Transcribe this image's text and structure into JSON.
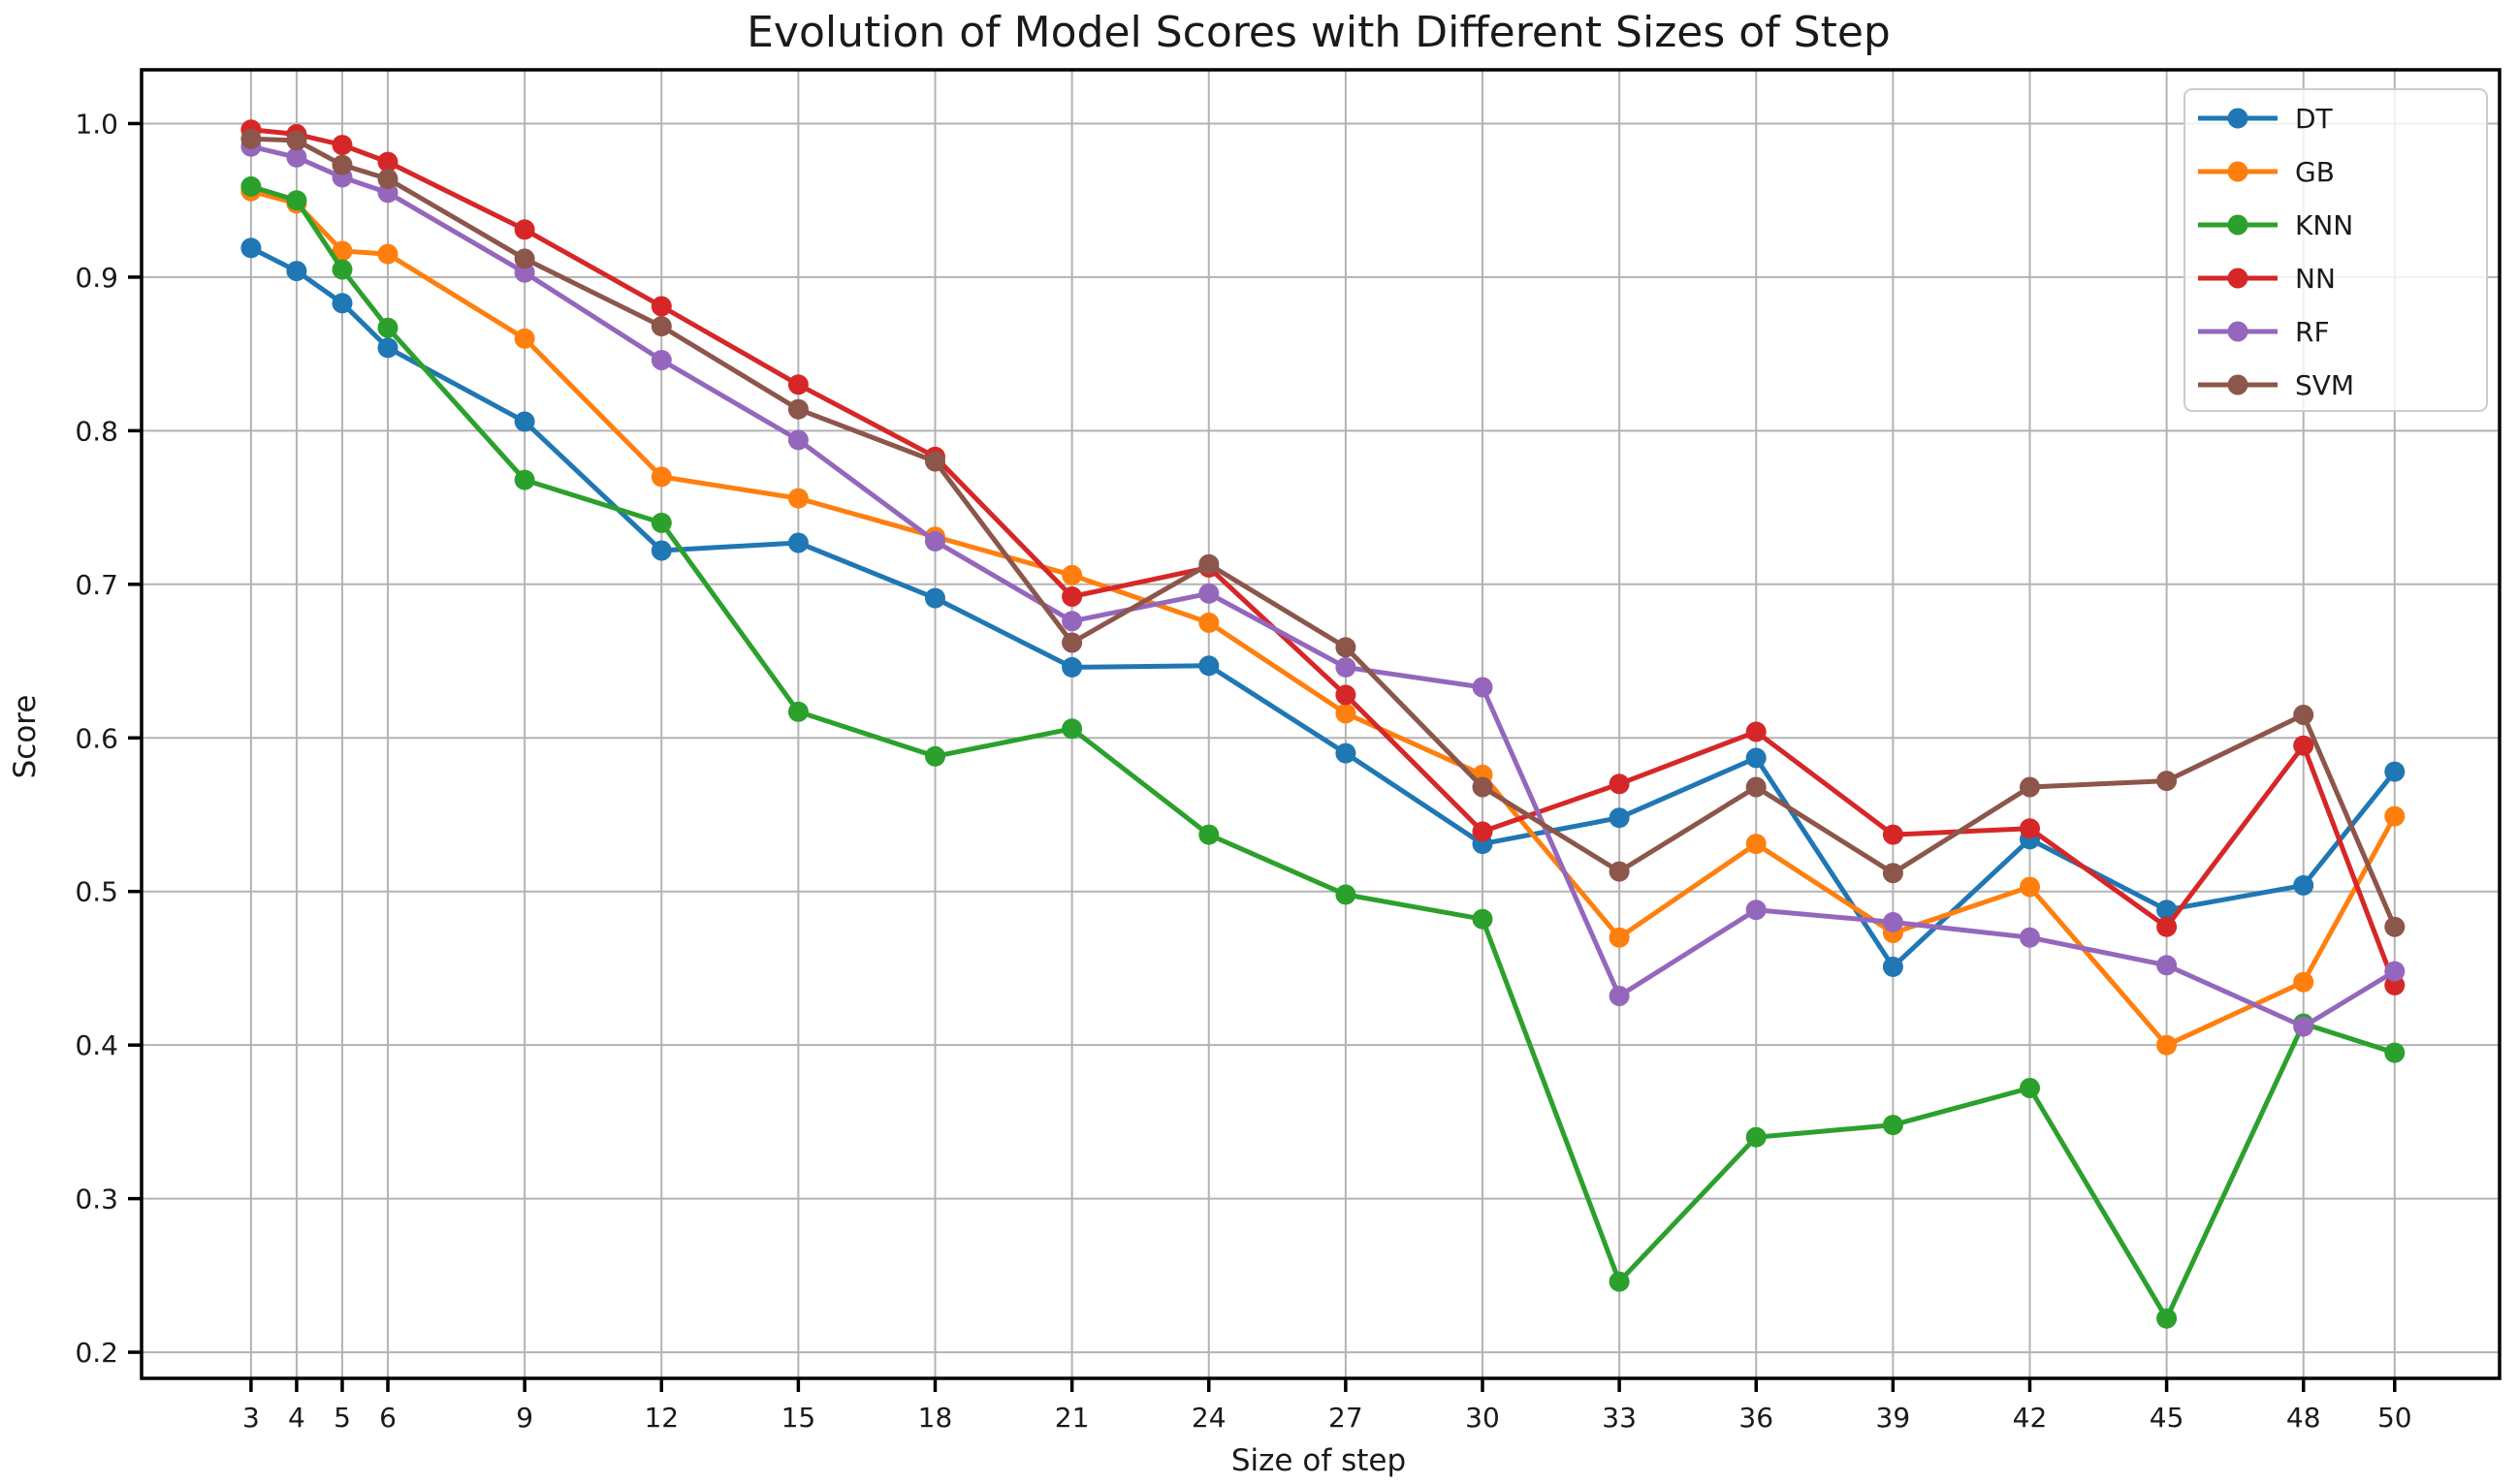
{
  "figure": {
    "title": "Evolution of Model Scores with Different Sizes of Step",
    "background_color": "#ffffff",
    "grid_color": "#b3b3b3",
    "spine_color": "#000000",
    "text_color": "#1a1a1a"
  },
  "chart_data": {
    "type": "line",
    "title": "Evolution of Model Scores with Different Sizes of Step",
    "xlabel": "Size of step",
    "ylabel": "Score",
    "grid": true,
    "legend_position": "upper right",
    "x": [
      3,
      4,
      5,
      6,
      9,
      12,
      15,
      18,
      21,
      24,
      27,
      30,
      33,
      36,
      39,
      42,
      45,
      48,
      50
    ],
    "x_tick_labels": [
      "3",
      "4",
      "5",
      "6",
      "9",
      "12",
      "15",
      "18",
      "21",
      "24",
      "27",
      "30",
      "33",
      "36",
      "39",
      "42",
      "45",
      "48",
      "50"
    ],
    "y_ticks": [
      0.2,
      0.3,
      0.4,
      0.5,
      0.6,
      0.7,
      0.8,
      0.9,
      1.0
    ],
    "y_tick_labels": [
      "0.2",
      "0.3",
      "0.4",
      "0.5",
      "0.6",
      "0.7",
      "0.8",
      "0.9",
      "1.0"
    ],
    "xlim": [
      0.6,
      52.3
    ],
    "ylim": [
      0.183,
      1.035
    ],
    "series": [
      {
        "name": "DT",
        "color": "#1f77b4",
        "marker": "circle",
        "values": [
          0.919,
          0.904,
          0.883,
          0.854,
          0.806,
          0.722,
          0.727,
          0.691,
          0.646,
          0.647,
          0.59,
          0.531,
          0.548,
          0.587,
          0.451,
          0.534,
          0.488,
          0.504,
          0.578
        ]
      },
      {
        "name": "GB",
        "color": "#ff7f0e",
        "marker": "circle",
        "values": [
          0.956,
          0.948,
          0.917,
          0.915,
          0.86,
          0.77,
          0.756,
          0.731,
          0.706,
          0.675,
          0.616,
          0.576,
          0.47,
          0.531,
          0.473,
          0.503,
          0.4,
          0.441,
          0.549
        ]
      },
      {
        "name": "KNN",
        "color": "#2ca02c",
        "marker": "circle",
        "values": [
          0.959,
          0.95,
          0.905,
          0.867,
          0.768,
          0.74,
          0.617,
          0.588,
          0.606,
          0.537,
          0.498,
          0.482,
          0.246,
          0.34,
          0.348,
          0.372,
          0.222,
          0.414,
          0.395
        ]
      },
      {
        "name": "NN",
        "color": "#d62728",
        "marker": "circle",
        "values": [
          0.996,
          0.993,
          0.986,
          0.975,
          0.931,
          0.881,
          0.83,
          0.783,
          0.692,
          0.711,
          0.628,
          0.539,
          0.57,
          0.604,
          0.537,
          0.541,
          0.477,
          0.595,
          0.439
        ]
      },
      {
        "name": "RF",
        "color": "#9467bd",
        "marker": "circle",
        "values": [
          0.985,
          0.978,
          0.965,
          0.955,
          0.903,
          0.846,
          0.794,
          0.728,
          0.676,
          0.694,
          0.646,
          0.633,
          0.432,
          0.488,
          0.48,
          0.47,
          0.452,
          0.412,
          0.448
        ]
      },
      {
        "name": "SVM",
        "color": "#8c564b",
        "marker": "circle",
        "values": [
          0.99,
          0.989,
          0.973,
          0.964,
          0.912,
          0.868,
          0.814,
          0.78,
          0.662,
          0.713,
          0.659,
          0.568,
          0.513,
          0.568,
          0.512,
          0.568,
          0.572,
          0.615,
          0.477
        ]
      }
    ]
  }
}
